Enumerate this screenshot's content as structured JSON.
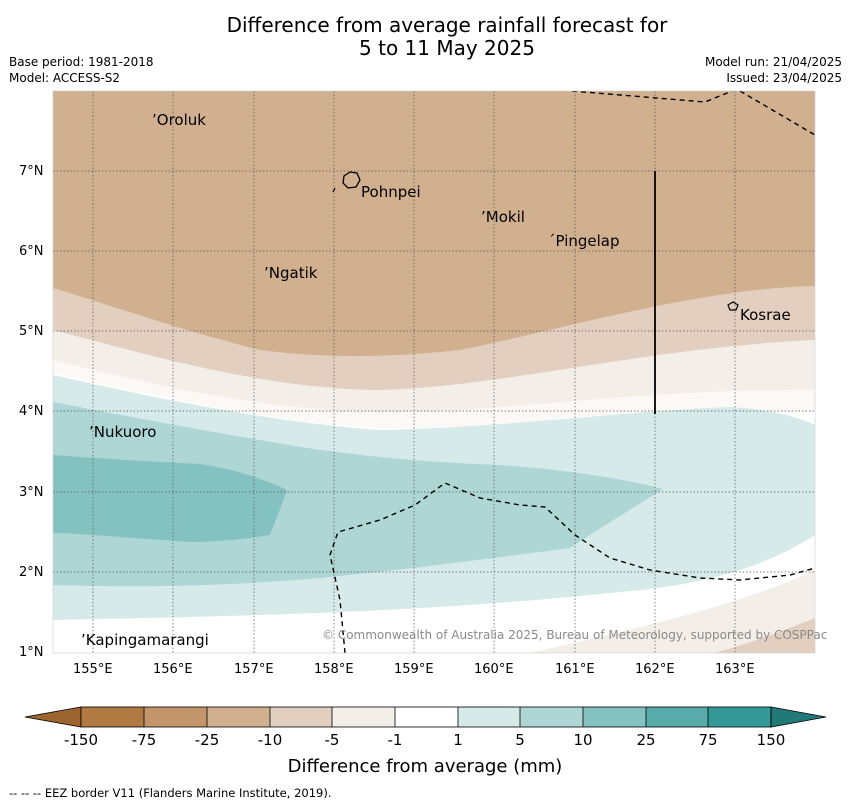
{
  "title_line1": "Difference from average rainfall forecast for",
  "title_line2": "5 to 11 May 2025",
  "base_period": "Base period: 1981-2018",
  "model": "Model: ACCESS-S2",
  "model_run": "Model run: 21/04/2025",
  "issued": "Issued: 23/04/2025",
  "copyright": "© Commonwealth of Australia 2025, Bureau of Meteorology, supported by COSPPac",
  "lon_ticks": [
    "155°E",
    "156°E",
    "157°E",
    "158°E",
    "159°E",
    "160°E",
    "161°E",
    "162°E",
    "163°E"
  ],
  "lat_ticks": [
    "7°N",
    "6°N",
    "5°N",
    "4°N",
    "3°N",
    "2°N",
    "1°N"
  ],
  "places": [
    {
      "name": "Oroluk",
      "lon": 155.75,
      "lat": 7.7
    },
    {
      "name": "Pohnpei",
      "lon": 158.3,
      "lat": 6.9
    },
    {
      "name": "Mokil",
      "lon": 159.8,
      "lat": 6.4
    },
    {
      "name": "Pingelap",
      "lon": 160.7,
      "lat": 6.15
    },
    {
      "name": "Ngatik",
      "lon": 157.15,
      "lat": 5.78
    },
    {
      "name": "Kosrae",
      "lon": 163.0,
      "lat": 5.3
    },
    {
      "name": "Nukuoro",
      "lon": 154.95,
      "lat": 3.85
    },
    {
      "name": "Kapingamarangi",
      "lon": 154.8,
      "lat": 1.08
    }
  ],
  "colorbar": {
    "labels": [
      "-150",
      "-75",
      "-25",
      "-10",
      "-5",
      "-1",
      "1",
      "5",
      "10",
      "25",
      "75",
      "150"
    ],
    "colors": [
      "#b07a42",
      "#c2956a",
      "#d1b090",
      "#e3cfbf",
      "#f4eee9",
      "#ffffff",
      "#d6eae9",
      "#add6d5",
      "#84c2c1",
      "#58aba9",
      "#349896"
    ],
    "extend_low": "#9c6530",
    "extend_high": "#217a78",
    "title": "Difference from average (mm)"
  },
  "footer": "--  --  -- EEZ border V11 (Flanders Marine Institute, 2019)."
}
